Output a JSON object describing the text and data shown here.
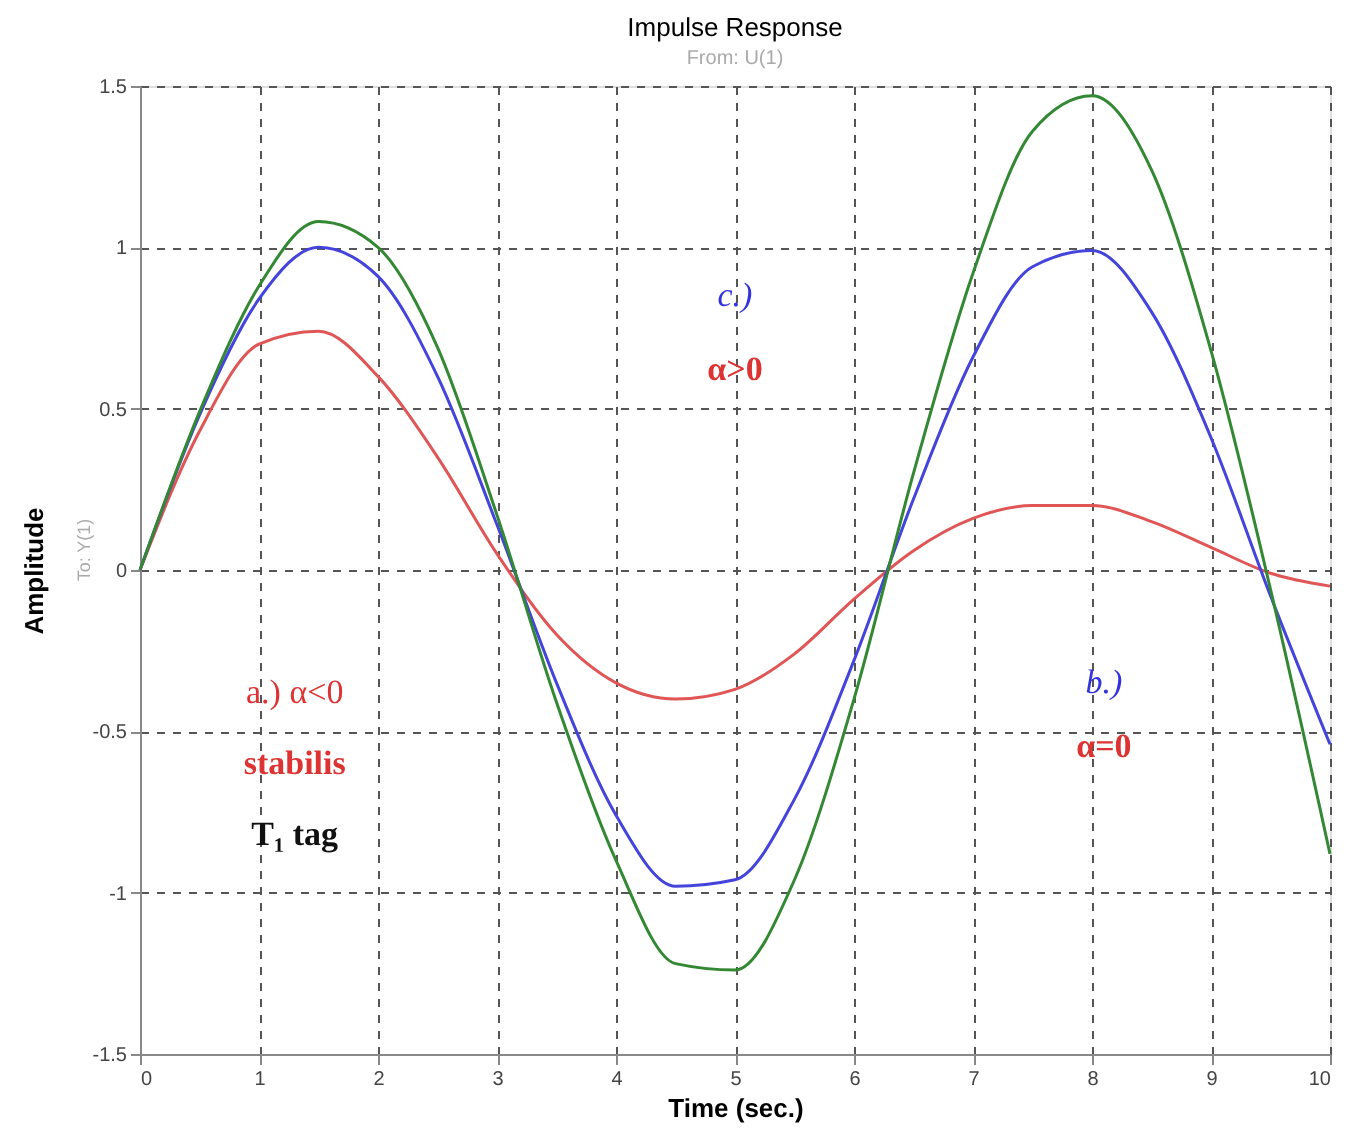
{
  "chart_data": {
    "type": "line",
    "title": "Impulse Response",
    "subtitle": "From: U(1)",
    "xlabel": "Time (sec.)",
    "ylabel": "Amplitude",
    "x": [
      0,
      0.5,
      1,
      1.5,
      2,
      2.5,
      3,
      3.5,
      4,
      4.5,
      5,
      5.5,
      6,
      6.5,
      7,
      7.5,
      8,
      8.5,
      9,
      9.5,
      10
    ],
    "series": [
      {
        "color": "#e05555",
        "values": [
          0,
          0.43,
          0.7,
          0.74,
          0.6,
          0.35,
          0.05,
          -0.2,
          -0.35,
          -0.4,
          -0.37,
          -0.26,
          -0.09,
          0.06,
          0.16,
          0.2,
          0.2,
          0.15,
          0.07,
          -0.01,
          -0.05
        ]
      },
      {
        "color": "#4444dd",
        "values": [
          0,
          0.48,
          0.84,
          1.0,
          0.91,
          0.6,
          0.14,
          -0.35,
          -0.76,
          -0.98,
          -0.96,
          -0.71,
          -0.28,
          0.22,
          0.66,
          0.94,
          0.99,
          0.8,
          0.41,
          -0.08,
          -0.54
        ]
      },
      {
        "color": "#338833",
        "values": [
          0,
          0.49,
          0.88,
          1.08,
          1.0,
          0.69,
          0.17,
          -0.41,
          -0.9,
          -1.22,
          -1.24,
          -0.96,
          -0.4,
          0.3,
          0.92,
          1.36,
          1.47,
          1.24,
          0.68,
          -0.06,
          -0.88
        ]
      }
    ],
    "annotations": [
      "c.)",
      "α>0",
      "a.) α<0",
      "stabilis",
      "T₁ tag",
      "b.)",
      "α=0",
      "To: Y(1)"
    ],
    "xlim": [
      0,
      10
    ],
    "xticks": [
      0,
      1,
      2,
      3,
      4,
      5,
      6,
      7,
      8,
      9,
      10
    ],
    "ylim": [
      -1.5,
      1.5
    ],
    "yticks": [
      -1.5,
      -1,
      -0.5,
      0,
      0.5,
      1,
      1.5
    ],
    "grid": true,
    "legend": false,
    "marker": "none",
    "line_style": "solid"
  }
}
